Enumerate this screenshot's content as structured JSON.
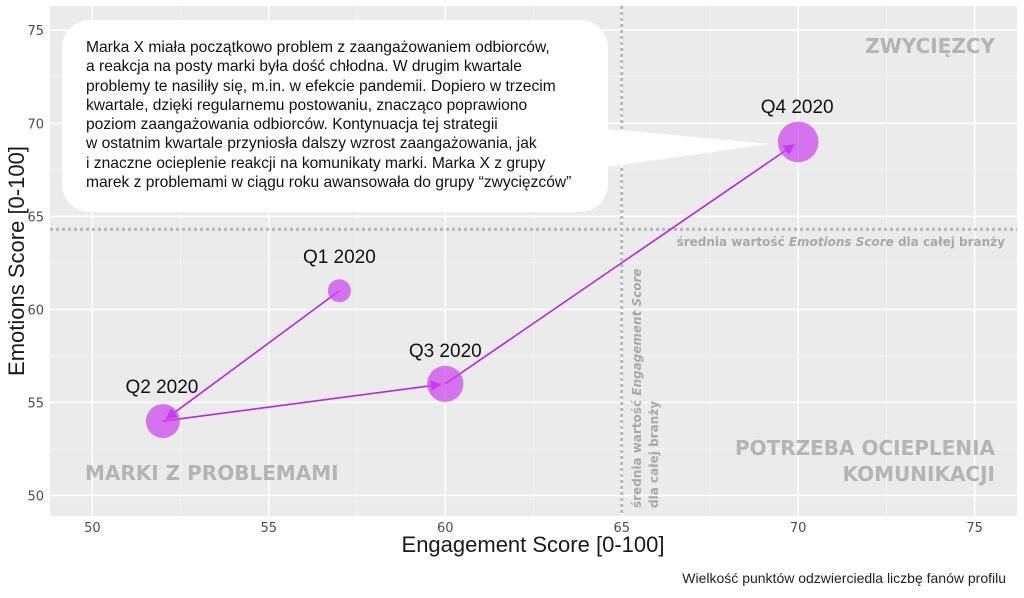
{
  "chart_data": {
    "type": "scatter",
    "xlabel": "Engagement Score [0-100]",
    "ylabel": "Emotions Score [0-100]",
    "xlim": [
      48.8,
      76.2
    ],
    "ylim": [
      48.9,
      76.3
    ],
    "x_ticks": [
      50,
      55,
      60,
      65,
      70,
      75
    ],
    "y_ticks": [
      50,
      55,
      60,
      65,
      70,
      75
    ],
    "grid": true,
    "points": [
      {
        "label": "Q1 2020",
        "x": 57,
        "y": 61,
        "size": 1
      },
      {
        "label": "Q2 2020",
        "x": 52,
        "y": 54,
        "size": 2
      },
      {
        "label": "Q3 2020",
        "x": 60,
        "y": 56,
        "size": 2.2
      },
      {
        "label": "Q4 2020",
        "x": 70,
        "y": 69,
        "size": 2.6
      }
    ],
    "path_order": [
      "Q1 2020",
      "Q2 2020",
      "Q3 2020",
      "Q4 2020"
    ],
    "reference_lines": {
      "x": {
        "value": 65,
        "label_prefix": "średnia wartość ",
        "label_em": "Engagement Score",
        "label_suffix": "dla całej branży"
      },
      "y": {
        "value": 64.3,
        "label_prefix": "średnia wartość ",
        "label_em": "Emotions Score",
        "label_suffix": " dla całej branży"
      }
    },
    "quadrant_labels": {
      "top_right": "ZWYCIĘZCY",
      "bottom_left": "MARKI Z PROBLEMAMI",
      "bottom_right_line1": "POTRZEBA OCIEPLENIA",
      "bottom_right_line2": "KOMUNIKACJI"
    },
    "colors": {
      "point": "#cc44ee",
      "arrow": "#bb22ee",
      "panel": "#ebebeb",
      "grid": "#ffffff",
      "ref_line": "#b8b8b8"
    }
  },
  "callout": {
    "text": "Marka X miała początkowo problem z zaangażowaniem odbiorców,\na reakcja na posty marki była dość chłodna. W drugim kwartale\nproblemy te nasiliły się, m.in. w efekcie pandemii. Dopiero w trzecim\nkwartale, dzięki regularnemu postowaniu, znacząco poprawiono\npoziom zaangażowania odbiorców. Kontynuacja tej strategii\nw ostatnim kwartale przyniosła dalszy wzrost zaangażowania, jak\ni znaczne ocieplenie reakcji na komunikaty marki. Marka X z grupy\nmarek z problemami w ciągu roku awansowała do grupy “zwycięzców”"
  },
  "footnote": "Wielkość punktów odzwierciedla liczbę fanów profilu"
}
